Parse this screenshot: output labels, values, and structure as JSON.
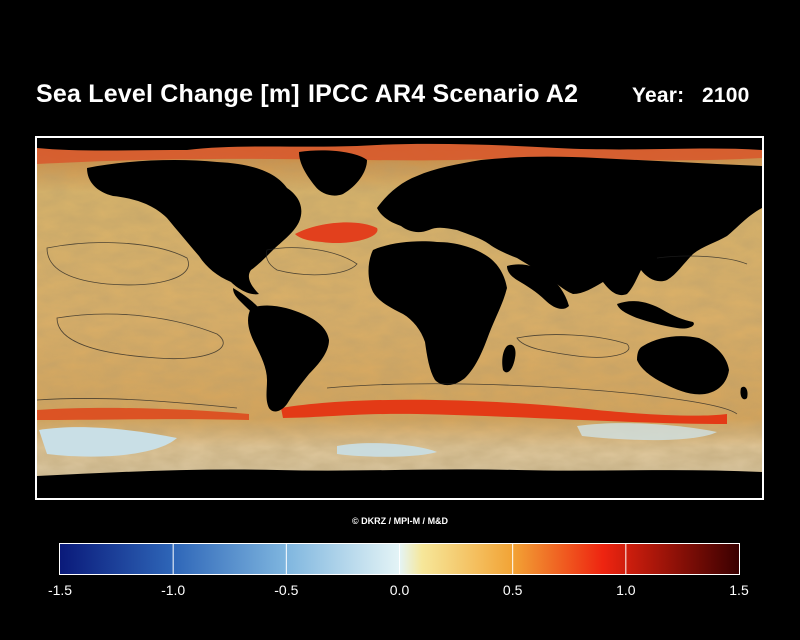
{
  "header": {
    "title": "Sea Level Change [m]",
    "scenario": "IPCC AR4 Scenario A2",
    "year_label": "Year:",
    "year_value": "2100"
  },
  "map": {
    "projection": "equirectangular",
    "layer": "sea level change",
    "land_color": "#000000"
  },
  "credit": "© DKRZ / MPI-M / M&D",
  "colorbar": {
    "min": -1.5,
    "max": 1.5,
    "segment_boundaries": [
      -1.5,
      -1.0,
      -0.5,
      0.0,
      0.5,
      1.0,
      1.5
    ],
    "tick_labels": [
      "-1.5",
      "-1.0",
      "-0.5",
      "0.0",
      "0.5",
      "1.0",
      "1.5"
    ],
    "color_stops": [
      {
        "value": -1.5,
        "color": "#0a1a7a"
      },
      {
        "value": -1.0,
        "color": "#2e66b8"
      },
      {
        "value": -0.5,
        "color": "#7fb6df"
      },
      {
        "value": 0.0,
        "color": "#e4f4f6"
      },
      {
        "value": 0.1,
        "color": "#f6e79a"
      },
      {
        "value": 0.5,
        "color": "#f2a335"
      },
      {
        "value": 0.9,
        "color": "#ee2410"
      },
      {
        "value": 1.5,
        "color": "#3a0000"
      }
    ]
  }
}
